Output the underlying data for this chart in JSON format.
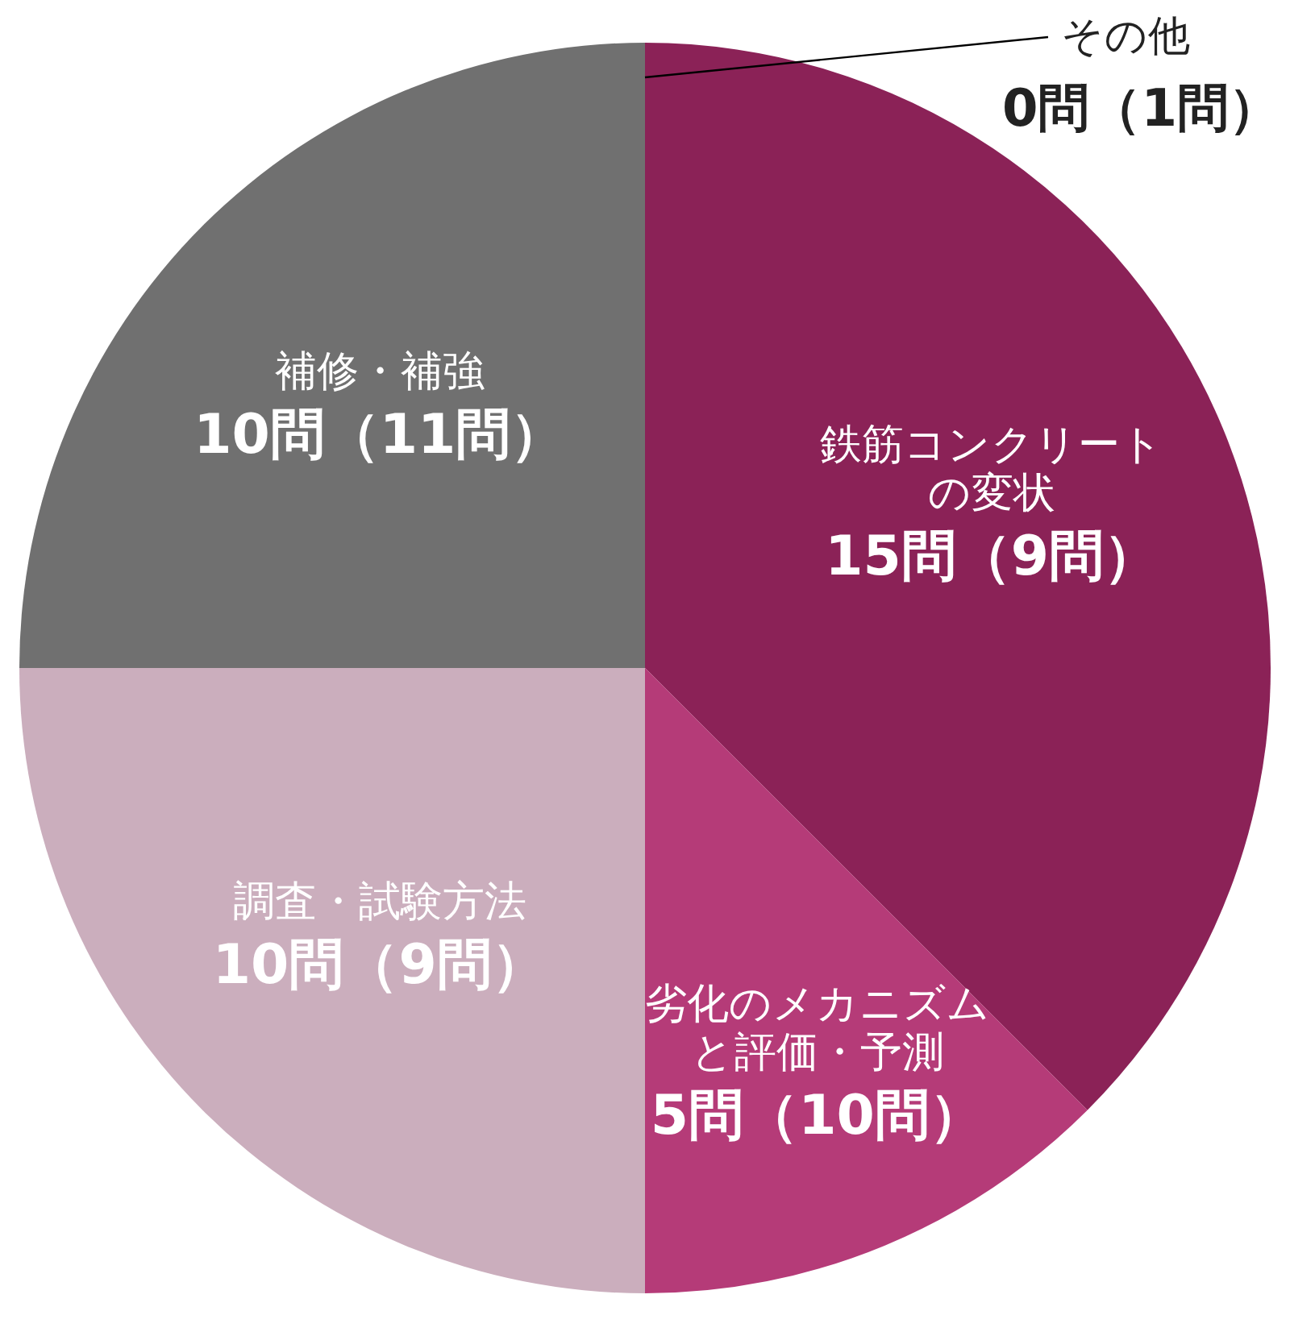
{
  "chart_data": {
    "type": "pie",
    "categories": [
      "鉄筋コンクリートの変状",
      "劣化のメカニズムと評価・予測",
      "調査・試験方法",
      "補修・補強",
      "その他"
    ],
    "values": [
      15,
      5,
      10,
      10,
      0
    ],
    "colors": [
      "#8b2257",
      "#b53b78",
      "#cbaebd",
      "#707070",
      "#707070"
    ],
    "value_labels": [
      "15問（9問）",
      "5問（10問）",
      "10問（9問）",
      "10問（11問）",
      "0問（1問）"
    ]
  }
}
